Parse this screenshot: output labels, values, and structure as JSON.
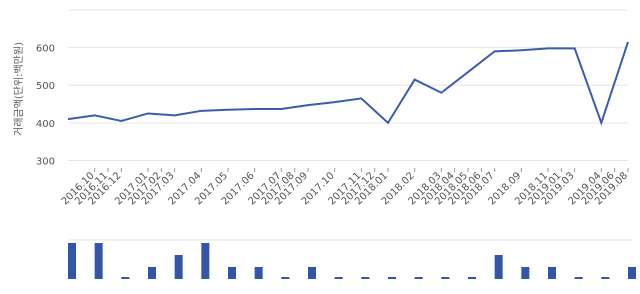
{
  "chart_data": [
    {
      "type": "line",
      "y_label": "거래금액(단위:백만원)",
      "categories": [
        null,
        "2016.10",
        "2016.12",
        "2017.01",
        "2017.03",
        "2017.04",
        "2017.05",
        "2017.06",
        "2017.07",
        "2017.09",
        "2017.10",
        "2017.11",
        "2018.01",
        "2018.02",
        "2018.03",
        "2018.05",
        "2018.07",
        "2018.09",
        "2018.11",
        "2019.03",
        "2019.04",
        "2019.08"
      ],
      "extra_xticks": [
        "2016.11",
        "2017.02",
        "2017.08",
        "2017.12",
        "2018.04",
        "2018.06",
        "2019.01",
        "2019.06"
      ],
      "series": [
        {
          "color": "#3b5cad",
          "values": [
            410,
            420,
            405,
            425,
            420,
            432,
            435,
            437,
            437,
            447,
            455,
            465,
            400,
            515,
            480,
            535,
            590,
            593,
            598,
            598,
            400,
            615
          ]
        }
      ],
      "ylim": [
        280,
        700
      ],
      "yticks": [
        300,
        400,
        500,
        600
      ],
      "grid": true
    },
    {
      "type": "bar",
      "color": "#3355aa",
      "values": [
        3,
        3,
        0,
        1,
        2,
        3,
        1,
        1,
        0,
        1,
        0,
        0,
        0,
        0,
        0,
        0,
        2,
        1,
        1,
        0,
        0,
        1
      ],
      "ylim": [
        0,
        3
      ]
    }
  ]
}
